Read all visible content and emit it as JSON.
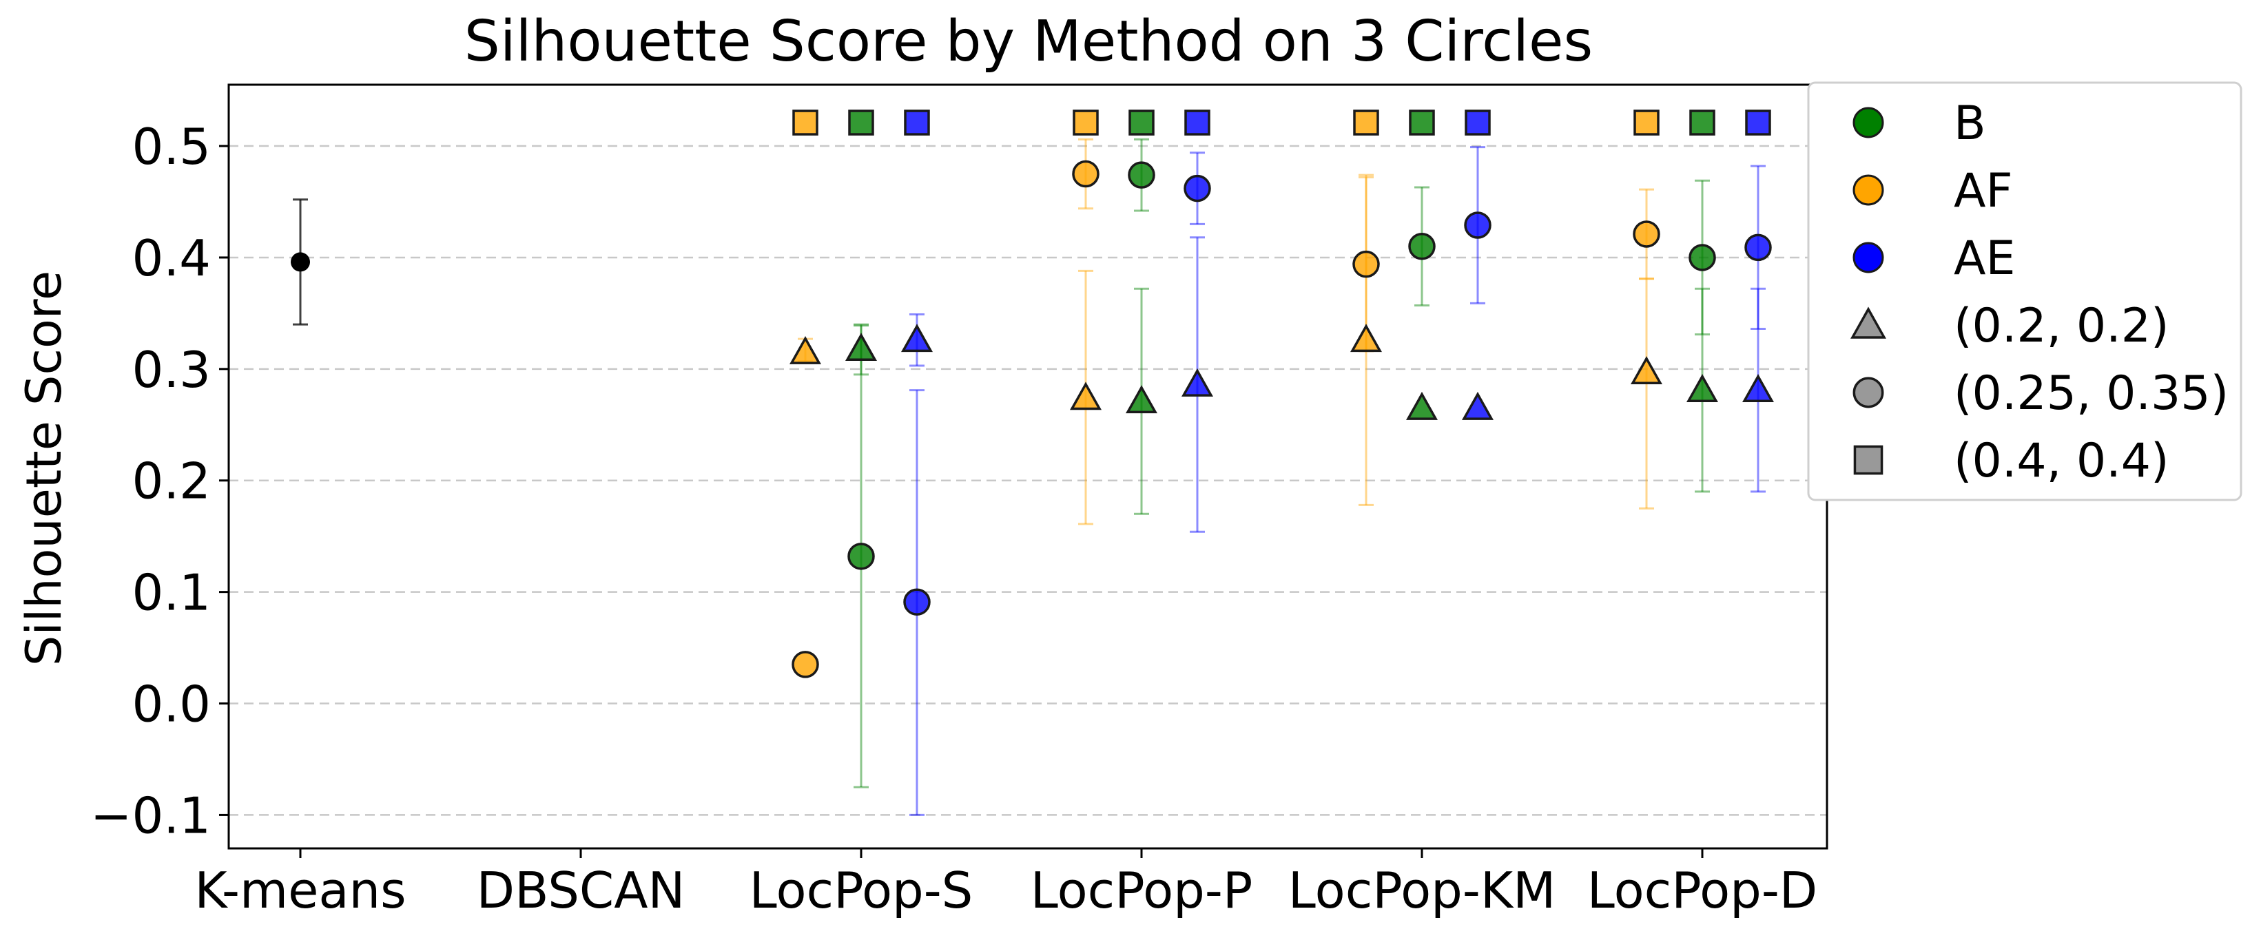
{
  "chart_data": {
    "type": "scatter",
    "title": "Silhouette Score by Method on 3 Circles",
    "xlabel": "",
    "ylabel": "Silhouette Score",
    "categories": [
      "K-means",
      "DBSCAN",
      "LocPop-S",
      "LocPop-P",
      "LocPop-KM",
      "LocPop-D"
    ],
    "ylim": [
      -0.13,
      0.555
    ],
    "yticks": [
      -0.1,
      0.0,
      0.1,
      0.2,
      0.3,
      0.4,
      0.5
    ],
    "ytick_labels": [
      "−0.1",
      "0.0",
      "0.1",
      "0.2",
      "0.3",
      "0.4",
      "0.5"
    ],
    "grid": "horizontal dashed",
    "legend": {
      "placement": "outside right, top",
      "entries": [
        {
          "label": "B",
          "kind": "color",
          "color": "#008000"
        },
        {
          "label": "AF",
          "kind": "color",
          "color": "#FFA500"
        },
        {
          "label": "AE",
          "kind": "color",
          "color": "#0000FF"
        },
        {
          "label": "(0.2, 0.2)",
          "kind": "marker",
          "marker": "triangle"
        },
        {
          "label": "(0.25, 0.35)",
          "kind": "marker",
          "marker": "circle"
        },
        {
          "label": "(0.4, 0.4)",
          "kind": "marker",
          "marker": "square"
        }
      ]
    },
    "colors": {
      "B": "#008000",
      "AF": "#FFA500",
      "AE": "#0000FF",
      "baseline": "#000000"
    },
    "baseline": {
      "category": "K-means",
      "value": 0.396,
      "err_low": 0.34,
      "err_high": 0.452
    },
    "series": [
      {
        "category": "LocPop-S",
        "color_key": "AF",
        "marker": "triangle",
        "value": 0.315,
        "err_low": 0.307,
        "err_high": 0.327
      },
      {
        "category": "LocPop-S",
        "color_key": "AF",
        "marker": "circle",
        "value": 0.035,
        "err_low": null,
        "err_high": null
      },
      {
        "category": "LocPop-S",
        "color_key": "AF",
        "marker": "square",
        "value": 0.521,
        "err_low": null,
        "err_high": null
      },
      {
        "category": "LocPop-S",
        "color_key": "B",
        "marker": "triangle",
        "value": 0.318,
        "err_low": 0.295,
        "err_high": 0.34
      },
      {
        "category": "LocPop-S",
        "color_key": "B",
        "marker": "circle",
        "value": 0.132,
        "err_low": -0.075,
        "err_high": 0.339
      },
      {
        "category": "LocPop-S",
        "color_key": "B",
        "marker": "square",
        "value": 0.521,
        "err_low": null,
        "err_high": null
      },
      {
        "category": "LocPop-S",
        "color_key": "AE",
        "marker": "triangle",
        "value": 0.326,
        "err_low": 0.303,
        "err_high": 0.349
      },
      {
        "category": "LocPop-S",
        "color_key": "AE",
        "marker": "circle",
        "value": 0.091,
        "err_low": -0.1,
        "err_high": 0.281
      },
      {
        "category": "LocPop-S",
        "color_key": "AE",
        "marker": "square",
        "value": 0.521,
        "err_low": null,
        "err_high": null
      },
      {
        "category": "LocPop-P",
        "color_key": "AF",
        "marker": "triangle",
        "value": 0.274,
        "err_low": 0.161,
        "err_high": 0.388
      },
      {
        "category": "LocPop-P",
        "color_key": "AF",
        "marker": "circle",
        "value": 0.475,
        "err_low": 0.444,
        "err_high": 0.506
      },
      {
        "category": "LocPop-P",
        "color_key": "AF",
        "marker": "square",
        "value": 0.521,
        "err_low": null,
        "err_high": null
      },
      {
        "category": "LocPop-P",
        "color_key": "B",
        "marker": "triangle",
        "value": 0.271,
        "err_low": 0.17,
        "err_high": 0.372
      },
      {
        "category": "LocPop-P",
        "color_key": "B",
        "marker": "circle",
        "value": 0.474,
        "err_low": 0.442,
        "err_high": 0.506
      },
      {
        "category": "LocPop-P",
        "color_key": "B",
        "marker": "square",
        "value": 0.521,
        "err_low": null,
        "err_high": null
      },
      {
        "category": "LocPop-P",
        "color_key": "AE",
        "marker": "triangle",
        "value": 0.286,
        "err_low": 0.154,
        "err_high": 0.418
      },
      {
        "category": "LocPop-P",
        "color_key": "AE",
        "marker": "circle",
        "value": 0.462,
        "err_low": 0.43,
        "err_high": 0.494
      },
      {
        "category": "LocPop-P",
        "color_key": "AE",
        "marker": "square",
        "value": 0.521,
        "err_low": null,
        "err_high": null
      },
      {
        "category": "LocPop-KM",
        "color_key": "AF",
        "marker": "triangle",
        "value": 0.326,
        "err_low": 0.178,
        "err_high": 0.474
      },
      {
        "category": "LocPop-KM",
        "color_key": "AF",
        "marker": "circle",
        "value": 0.394,
        "err_low": 0.316,
        "err_high": 0.472
      },
      {
        "category": "LocPop-KM",
        "color_key": "AF",
        "marker": "square",
        "value": 0.521,
        "err_low": null,
        "err_high": null
      },
      {
        "category": "LocPop-KM",
        "color_key": "B",
        "marker": "triangle",
        "value": 0.265,
        "err_low": null,
        "err_high": null
      },
      {
        "category": "LocPop-KM",
        "color_key": "B",
        "marker": "circle",
        "value": 0.41,
        "err_low": 0.357,
        "err_high": 0.463
      },
      {
        "category": "LocPop-KM",
        "color_key": "B",
        "marker": "square",
        "value": 0.521,
        "err_low": null,
        "err_high": null
      },
      {
        "category": "LocPop-KM",
        "color_key": "AE",
        "marker": "triangle",
        "value": 0.265,
        "err_low": null,
        "err_high": null
      },
      {
        "category": "LocPop-KM",
        "color_key": "AE",
        "marker": "circle",
        "value": 0.429,
        "err_low": 0.359,
        "err_high": 0.499
      },
      {
        "category": "LocPop-KM",
        "color_key": "AE",
        "marker": "square",
        "value": 0.521,
        "err_low": null,
        "err_high": null
      },
      {
        "category": "LocPop-D",
        "color_key": "AF",
        "marker": "triangle",
        "value": 0.297,
        "err_low": 0.175,
        "err_high": 0.381
      },
      {
        "category": "LocPop-D",
        "color_key": "AF",
        "marker": "circle",
        "value": 0.421,
        "err_low": 0.381,
        "err_high": 0.461
      },
      {
        "category": "LocPop-D",
        "color_key": "AF",
        "marker": "square",
        "value": 0.521,
        "err_low": null,
        "err_high": null
      },
      {
        "category": "LocPop-D",
        "color_key": "B",
        "marker": "triangle",
        "value": 0.281,
        "err_low": 0.19,
        "err_high": 0.372
      },
      {
        "category": "LocPop-D",
        "color_key": "B",
        "marker": "circle",
        "value": 0.4,
        "err_low": 0.331,
        "err_high": 0.469
      },
      {
        "category": "LocPop-D",
        "color_key": "B",
        "marker": "square",
        "value": 0.521,
        "err_low": null,
        "err_high": null
      },
      {
        "category": "LocPop-D",
        "color_key": "AE",
        "marker": "triangle",
        "value": 0.281,
        "err_low": 0.19,
        "err_high": 0.372
      },
      {
        "category": "LocPop-D",
        "color_key": "AE",
        "marker": "circle",
        "value": 0.409,
        "err_low": 0.336,
        "err_high": 0.482
      },
      {
        "category": "LocPop-D",
        "color_key": "AE",
        "marker": "square",
        "value": 0.521,
        "err_low": null,
        "err_high": null
      }
    ]
  }
}
